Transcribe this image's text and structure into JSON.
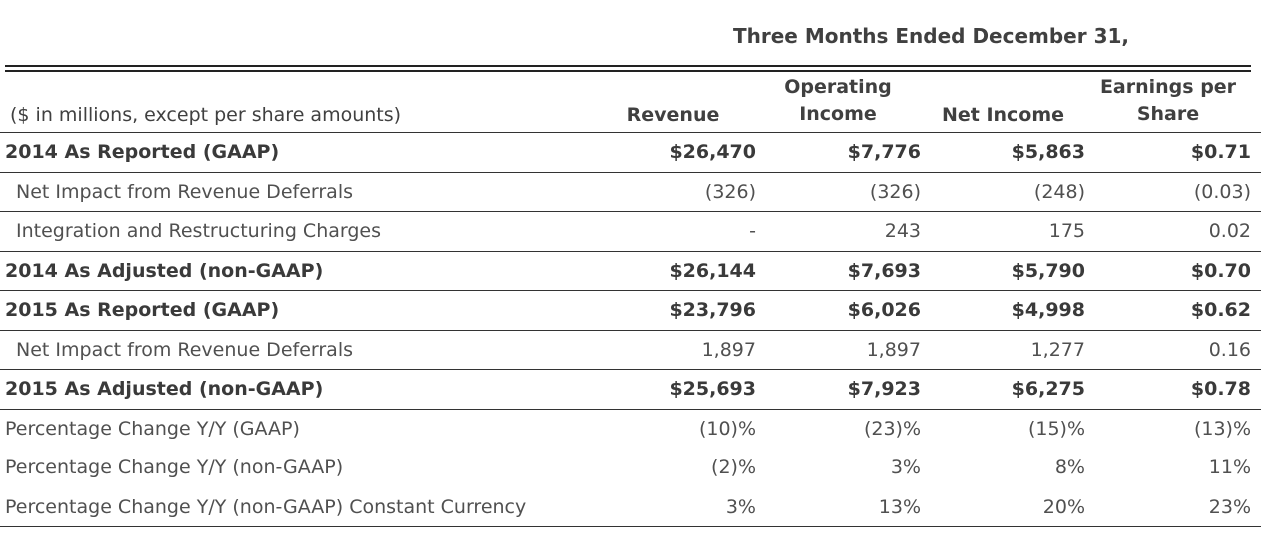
{
  "header": {
    "period": "Three Months Ended December 31,",
    "label_column": "($ in millions, except per share amounts)",
    "columns": {
      "revenue": "Revenue",
      "operating_income": "Operating Income",
      "net_income": "Net Income",
      "eps": "Earnings per Share"
    }
  },
  "rows": [
    {
      "label": "2014 As Reported (GAAP)",
      "revenue": "$26,470",
      "operating_income": "$7,776",
      "net_income": "$5,863",
      "eps": "$0.71"
    },
    {
      "label": "Net Impact from Revenue Deferrals",
      "revenue": "(326)",
      "operating_income": "(326)",
      "net_income": "(248)",
      "eps": "(0.03)"
    },
    {
      "label": "Integration and Restructuring Charges",
      "revenue": "-",
      "operating_income": "243",
      "net_income": "175",
      "eps": "0.02"
    },
    {
      "label": "2014 As Adjusted (non-GAAP)",
      "revenue": "$26,144",
      "operating_income": "$7,693",
      "net_income": "$5,790",
      "eps": "$0.70"
    },
    {
      "label": "2015 As Reported (GAAP)",
      "revenue": "$23,796",
      "operating_income": "$6,026",
      "net_income": "$4,998",
      "eps": "$0.62"
    },
    {
      "label": "Net Impact from Revenue Deferrals",
      "revenue": "1,897",
      "operating_income": "1,897",
      "net_income": "1,277",
      "eps": "0.16"
    },
    {
      "label": "2015 As Adjusted (non-GAAP)",
      "revenue": "$25,693",
      "operating_income": "$7,923",
      "net_income": "$6,275",
      "eps": "$0.78"
    },
    {
      "label": "Percentage Change Y/Y (GAAP)",
      "revenue": "(10)%",
      "operating_income": "(23)%",
      "net_income": "(15)%",
      "eps": "(13)%"
    },
    {
      "label": "Percentage Change Y/Y (non-GAAP)",
      "revenue": "(2)%",
      "operating_income": "3%",
      "net_income": "8%",
      "eps": "11%"
    },
    {
      "label": "Percentage Change Y/Y (non-GAAP) Constant Currency",
      "revenue": "3%",
      "operating_income": "13%",
      "net_income": "20%",
      "eps": "23%"
    }
  ]
}
